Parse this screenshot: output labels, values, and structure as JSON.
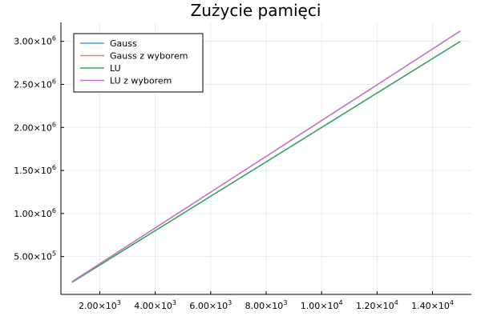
{
  "chart_data": {
    "type": "line",
    "title": "Zużycie pamięci",
    "xlabel": "",
    "ylabel": "",
    "xlim": [
      600,
      15400
    ],
    "ylim": [
      60000,
      3220000
    ],
    "x_ticks": [
      {
        "value": 2000,
        "mantissa": "2.00",
        "exp": "3"
      },
      {
        "value": 4000,
        "mantissa": "4.00",
        "exp": "3"
      },
      {
        "value": 6000,
        "mantissa": "6.00",
        "exp": "3"
      },
      {
        "value": 8000,
        "mantissa": "8.00",
        "exp": "3"
      },
      {
        "value": 10000,
        "mantissa": "1.00",
        "exp": "4"
      },
      {
        "value": 12000,
        "mantissa": "1.20",
        "exp": "4"
      },
      {
        "value": 14000,
        "mantissa": "1.40",
        "exp": "4"
      }
    ],
    "y_ticks": [
      {
        "value": 500000,
        "mantissa": "5.00",
        "exp": "5"
      },
      {
        "value": 1000000,
        "mantissa": "1.00",
        "exp": "6"
      },
      {
        "value": 1500000,
        "mantissa": "1.50",
        "exp": "6"
      },
      {
        "value": 2000000,
        "mantissa": "2.00",
        "exp": "6"
      },
      {
        "value": 2500000,
        "mantissa": "2.50",
        "exp": "6"
      },
      {
        "value": 3000000,
        "mantissa": "3.00",
        "exp": "6"
      }
    ],
    "tick_times": "×10",
    "grid": true,
    "legend_position": "top-left",
    "series": [
      {
        "name": "Gauss",
        "color": "#3c9fe6",
        "x": [
          1000,
          15000
        ],
        "y": [
          200000,
          3000000
        ]
      },
      {
        "name": "Gauss z wyborem",
        "color": "#e0816a",
        "x": [
          1000,
          15000
        ],
        "y": [
          208000,
          3120000
        ]
      },
      {
        "name": "LU",
        "color": "#3aa65a",
        "x": [
          1000,
          15000
        ],
        "y": [
          200000,
          3000000
        ]
      },
      {
        "name": "LU z wyborem",
        "color": "#c274cc",
        "x": [
          1000,
          15000
        ],
        "y": [
          208000,
          3120000
        ]
      }
    ]
  }
}
